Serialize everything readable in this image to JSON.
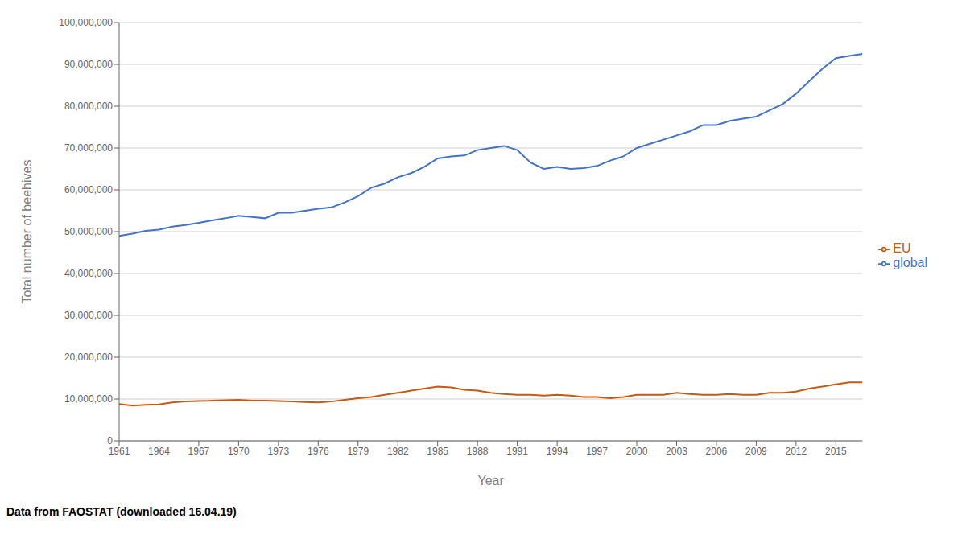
{
  "chart_data": {
    "type": "line",
    "x": [
      1961,
      1962,
      1963,
      1964,
      1965,
      1966,
      1967,
      1968,
      1969,
      1970,
      1971,
      1972,
      1973,
      1974,
      1975,
      1976,
      1977,
      1978,
      1979,
      1980,
      1981,
      1982,
      1983,
      1984,
      1985,
      1986,
      1987,
      1988,
      1989,
      1990,
      1991,
      1992,
      1993,
      1994,
      1995,
      1996,
      1997,
      1998,
      1999,
      2000,
      2001,
      2002,
      2003,
      2004,
      2005,
      2006,
      2007,
      2008,
      2009,
      2010,
      2011,
      2012,
      2013,
      2014,
      2015,
      2016,
      2017
    ],
    "series": [
      {
        "name": "global",
        "color": "#4472C4",
        "values": [
          49000000,
          49500000,
          50200000,
          50500000,
          51200000,
          51600000,
          52100000,
          52700000,
          53200000,
          53800000,
          53500000,
          53200000,
          54500000,
          54500000,
          55000000,
          55500000,
          55800000,
          57000000,
          58500000,
          60500000,
          61500000,
          63000000,
          64000000,
          65500000,
          67500000,
          68000000,
          68200000,
          69500000,
          70000000,
          70500000,
          69500000,
          66500000,
          65000000,
          65500000,
          65000000,
          65200000,
          65700000,
          67000000,
          68000000,
          70000000,
          71000000,
          72000000,
          73000000,
          74000000,
          75500000,
          75500000,
          76500000,
          77000000,
          77500000,
          79000000,
          80500000,
          83000000,
          86000000,
          89000000,
          91500000,
          92000000,
          92500000
        ]
      },
      {
        "name": "EU",
        "color": "#C55A11",
        "values": [
          8800000,
          8400000,
          8600000,
          8700000,
          9200000,
          9400000,
          9500000,
          9600000,
          9700000,
          9800000,
          9600000,
          9600000,
          9500000,
          9400000,
          9300000,
          9200000,
          9400000,
          9800000,
          10200000,
          10500000,
          11000000,
          11500000,
          12000000,
          12500000,
          13000000,
          12800000,
          12200000,
          12000000,
          11500000,
          11200000,
          11000000,
          11000000,
          10800000,
          11000000,
          10800000,
          10500000,
          10500000,
          10200000,
          10500000,
          11000000,
          11000000,
          11000000,
          11500000,
          11200000,
          11000000,
          11000000,
          11200000,
          11000000,
          11000000,
          11500000,
          11500000,
          11800000,
          12500000,
          13000000,
          13500000,
          14000000,
          14000000
        ]
      }
    ],
    "xlabel": "Year",
    "ylabel": "Total number of beehives",
    "annotations": [
      "Data from FAOSTAT (downloaded 16.04.19)"
    ],
    "xlim": [
      1961,
      2017
    ],
    "xticks": [
      1961,
      1964,
      1967,
      1970,
      1973,
      1976,
      1979,
      1982,
      1985,
      1988,
      1991,
      1994,
      1997,
      2000,
      2003,
      2006,
      2009,
      2012,
      2015
    ],
    "ylim": [
      0,
      100000000
    ],
    "yticks": [
      0,
      {
        "value": 10000000,
        "label": "10,000,000"
      },
      {
        "value": 20000000,
        "label": "20,000,000"
      },
      {
        "value": 30000000,
        "label": "30,000,000"
      },
      {
        "value": 40000000,
        "label": "40,000,000"
      },
      {
        "value": 50000000,
        "label": "50,000,000"
      },
      {
        "value": 60000000,
        "label": "60,000,000"
      },
      {
        "value": 70000000,
        "label": "70,000,000"
      },
      {
        "value": 80000000,
        "label": "80,000,000"
      },
      {
        "value": 90000000,
        "label": "90,000,000"
      },
      {
        "value": 100000000,
        "label": "100,000,000"
      }
    ],
    "grid": true,
    "legend": "right"
  }
}
